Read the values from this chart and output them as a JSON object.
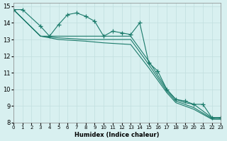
{
  "xlabel": "Humidex (Indice chaleur)",
  "bg_color": "#d8f0f0",
  "grid_color": "#c0dede",
  "line_color": "#1a7a6a",
  "xlim": [
    0,
    23
  ],
  "ylim": [
    8,
    15.2
  ],
  "xticks": [
    0,
    1,
    2,
    3,
    4,
    5,
    6,
    7,
    8,
    9,
    10,
    11,
    12,
    13,
    14,
    15,
    16,
    17,
    18,
    19,
    20,
    21,
    22,
    23
  ],
  "yticks": [
    8,
    9,
    10,
    11,
    12,
    13,
    14,
    15
  ],
  "series1_x": [
    0,
    1,
    3,
    4,
    5,
    6,
    7,
    8,
    9,
    10,
    11,
    12,
    13,
    14,
    15,
    16,
    17,
    18,
    19,
    20,
    21,
    22,
    23
  ],
  "series1_y": [
    14.8,
    14.8,
    13.8,
    13.2,
    13.9,
    14.5,
    14.6,
    14.4,
    14.1,
    13.2,
    13.5,
    13.4,
    13.3,
    14.0,
    11.6,
    11.1,
    10.0,
    9.4,
    9.3,
    9.1,
    9.1,
    8.3,
    8.3
  ],
  "series2_x": [
    0,
    3,
    5,
    8,
    10,
    13,
    15,
    17,
    18,
    19,
    20,
    22,
    23
  ],
  "series2_y": [
    14.8,
    13.2,
    13.2,
    13.2,
    13.2,
    13.2,
    11.7,
    10.0,
    9.4,
    9.2,
    9.1,
    8.3,
    8.3
  ],
  "series3_x": [
    0,
    3,
    5,
    8,
    10,
    13,
    15,
    17,
    18,
    19,
    20,
    22,
    23
  ],
  "series3_y": [
    14.8,
    13.2,
    13.1,
    13.0,
    13.0,
    13.0,
    11.5,
    9.9,
    9.3,
    9.1,
    8.9,
    8.25,
    8.25
  ],
  "series4_x": [
    0,
    3,
    5,
    8,
    10,
    13,
    15,
    17,
    18,
    19,
    20,
    22,
    23
  ],
  "series4_y": [
    14.8,
    13.2,
    13.0,
    12.9,
    12.8,
    12.7,
    11.3,
    9.8,
    9.2,
    9.0,
    8.8,
    8.2,
    8.2
  ]
}
